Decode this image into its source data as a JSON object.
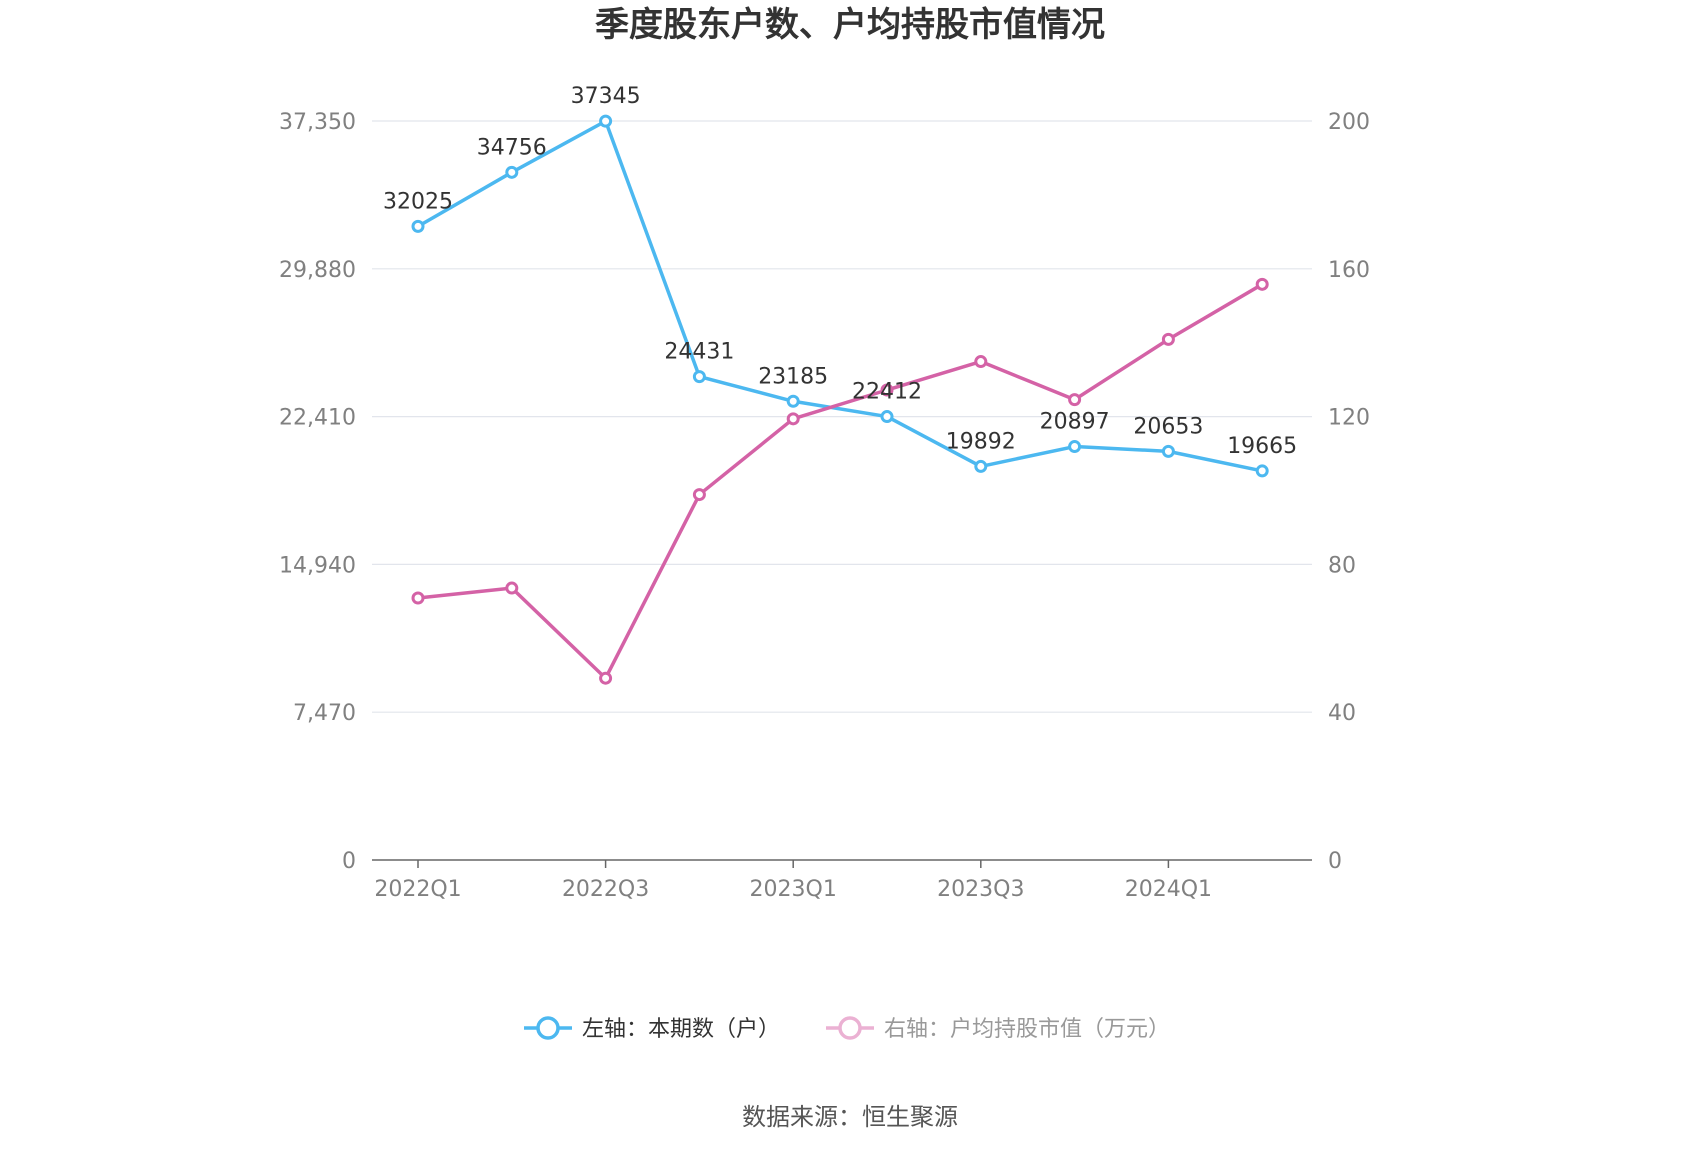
{
  "chart_data": {
    "type": "line",
    "title": "季度股东户数、户均持股市值情况",
    "categories": [
      "2022Q1",
      "2022Q2",
      "2022Q3",
      "2022Q4",
      "2023Q1",
      "2023Q2",
      "2023Q3",
      "2023Q4",
      "2024Q1",
      "2024Q2"
    ],
    "x_tick_labels": [
      "2022Q1",
      "2022Q3",
      "2023Q1",
      "2023Q3",
      "2024Q1"
    ],
    "y_left": {
      "ticks": [
        "0",
        "7,470",
        "14,940",
        "22,410",
        "29,880",
        "37,350"
      ],
      "range": [
        0,
        37350
      ]
    },
    "y_right": {
      "ticks": [
        "0",
        "40",
        "80",
        "120",
        "160",
        "200"
      ],
      "range": [
        0,
        200
      ]
    },
    "grid": true,
    "legend_position": "bottom-center",
    "series": [
      {
        "name": "左轴：本期数（户）",
        "axis": "left",
        "color": "#4cb8f0",
        "values": [
          32025,
          34756,
          37345,
          24431,
          23185,
          22412,
          19892,
          20897,
          20653,
          19665
        ],
        "labels": [
          "32025",
          "34756",
          "37345",
          "24431",
          "23185",
          "22412",
          "19892",
          "20897",
          "20653",
          "19665"
        ]
      },
      {
        "name": "右轴：户均持股市值（万元）",
        "axis": "right",
        "color": "#d462a6",
        "legend_color": "#ebb1d3",
        "values": [
          70.9,
          73.6,
          49.2,
          98.9,
          119.4,
          127.2,
          134.9,
          124.6,
          140.9,
          155.8
        ]
      }
    ],
    "source": "数据来源：恒生聚源"
  }
}
